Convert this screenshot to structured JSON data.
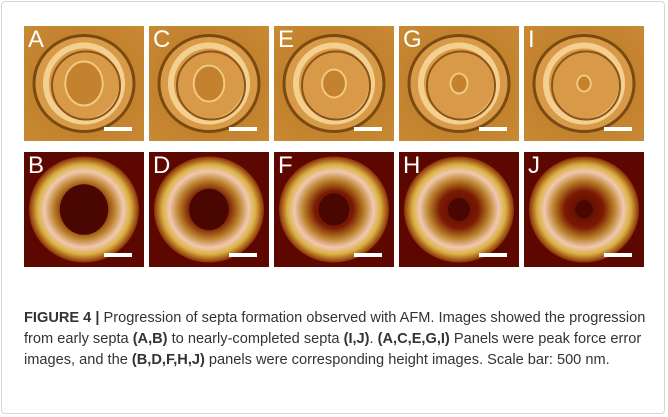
{
  "figure": {
    "panels": {
      "top": [
        "A",
        "C",
        "E",
        "G",
        "I"
      ],
      "bottom": [
        "B",
        "D",
        "F",
        "H",
        "J"
      ]
    }
  },
  "caption": {
    "label": "FIGURE 4 |",
    "parts": [
      "Progression of septa formation observed with AFM. Images showed the progression from early septa ",
      "(A,B)",
      " to nearly-completed septa ",
      "(I,J)",
      ". ",
      "(A,C,E,G,I)",
      " Panels were peak force error images, and the ",
      "(B,D,F,H,J)",
      " panels were corresponding height images. Scale bar: 500 nm."
    ]
  }
}
